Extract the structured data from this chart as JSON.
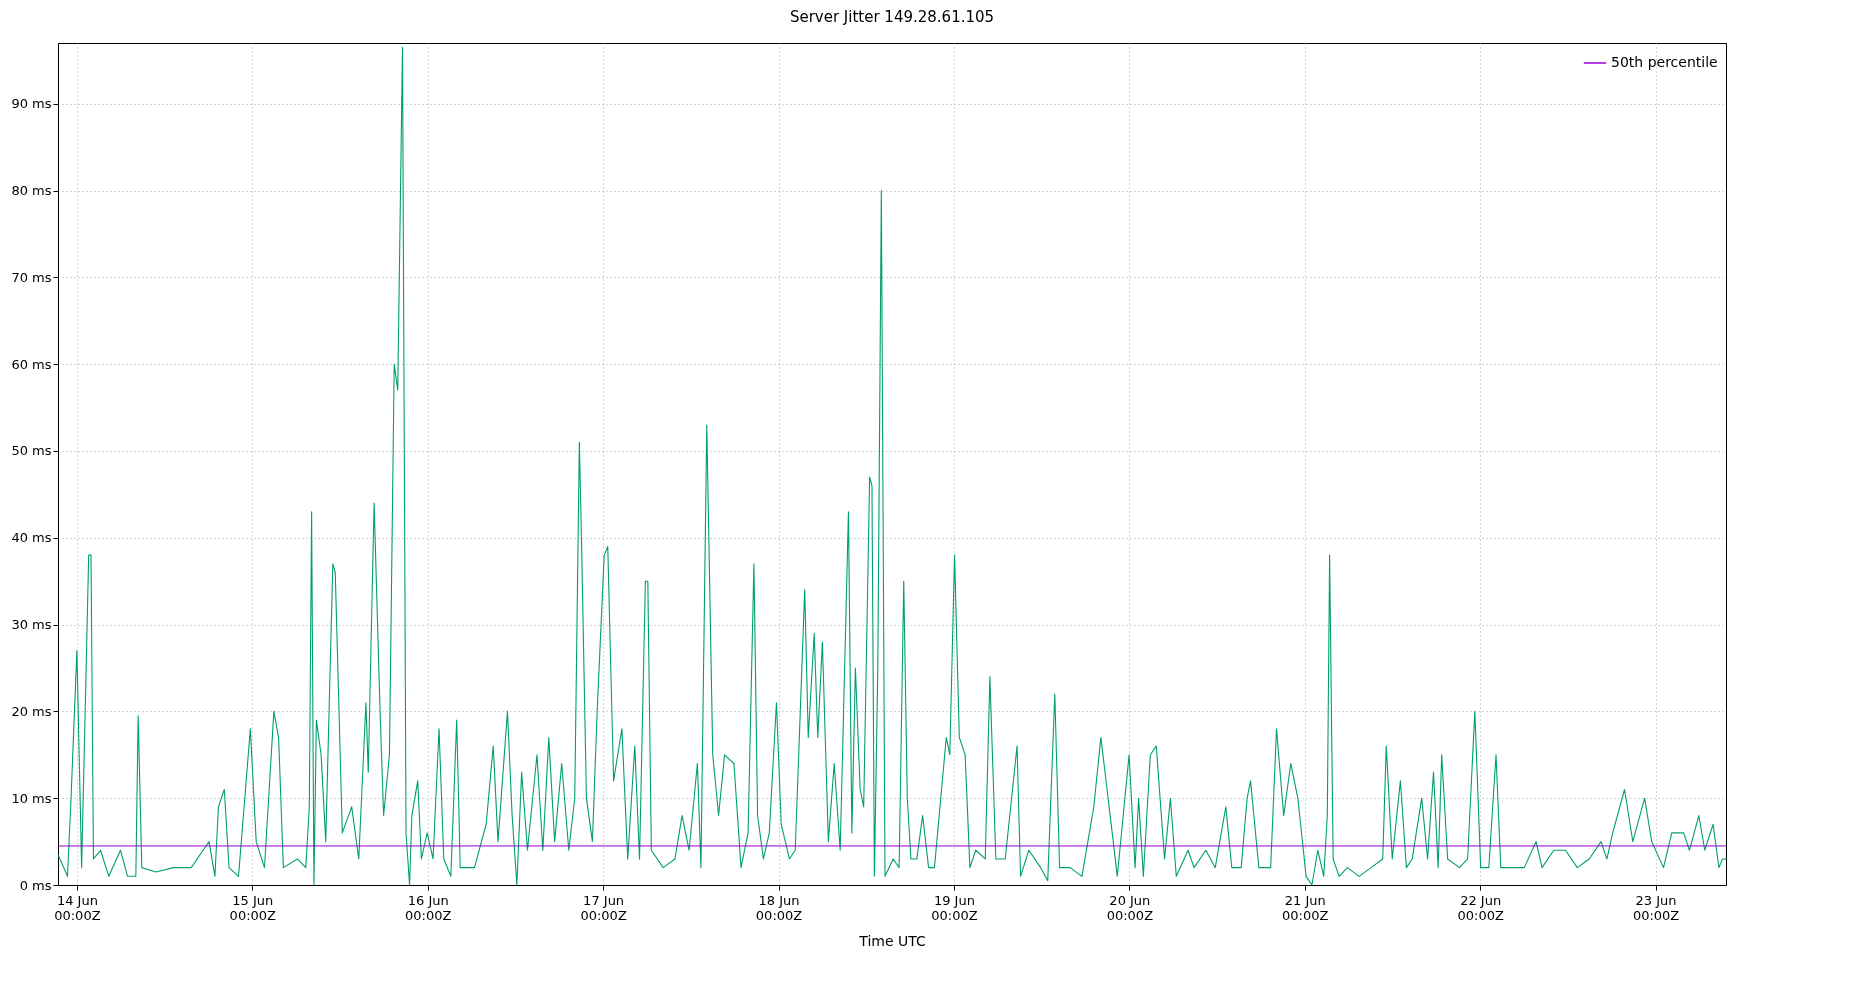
{
  "chart_data": {
    "type": "line",
    "title": "Server Jitter 149.28.61.105",
    "xlabel": "Time UTC",
    "xlim": [
      "--06-13T21:25",
      "--06-23T09:38"
    ],
    "xticks": [
      {
        "value": "--06-14T00:00",
        "label": "14 Jun\n00:00Z"
      },
      {
        "value": "--06-15T00:00",
        "label": "15 Jun\n00:00Z"
      },
      {
        "value": "--06-16T00:00",
        "label": "16 Jun\n00:00Z"
      },
      {
        "value": "--06-17T00:00",
        "label": "17 Jun\n00:00Z"
      },
      {
        "value": "--06-18T00:00",
        "label": "18 Jun\n00:00Z"
      },
      {
        "value": "--06-19T00:00",
        "label": "19 Jun\n00:00Z"
      },
      {
        "value": "--06-20T00:00",
        "label": "20 Jun\n00:00Z"
      },
      {
        "value": "--06-21T00:00",
        "label": "21 Jun\n00:00Z"
      },
      {
        "value": "--06-22T00:00",
        "label": "22 Jun\n00:00Z"
      },
      {
        "value": "--06-23T00:00",
        "label": "23 Jun\n00:00Z"
      }
    ],
    "ylim": [
      0,
      97
    ],
    "yticks": [
      {
        "value": 0,
        "label": "0 ms"
      },
      {
        "value": 10,
        "label": "10 ms"
      },
      {
        "value": 20,
        "label": "20 ms"
      },
      {
        "value": 30,
        "label": "30 ms"
      },
      {
        "value": 40,
        "label": "40 ms"
      },
      {
        "value": 50,
        "label": "50 ms"
      },
      {
        "value": 60,
        "label": "60 ms"
      },
      {
        "value": 70,
        "label": "70 ms"
      },
      {
        "value": 80,
        "label": "80 ms"
      },
      {
        "value": 90,
        "label": "90 ms"
      }
    ],
    "grid": true,
    "legend": "top right",
    "line_style": "solid",
    "marker": "none",
    "ref_lines": [
      {
        "axis": "y",
        "value": 4.5,
        "label": "50th percentile",
        "color": "#9400d3"
      }
    ],
    "series": [
      {
        "color": "#009e73",
        "x": [
          "--06-13T21:25",
          "--06-13T22:43",
          "--06-13T23:12",
          "--06-14T00:00",
          "--06-14T00:39",
          "--06-14T01:37",
          "--06-14T01:56",
          "--06-14T02:16",
          "--06-14T03:14",
          "--06-14T04:22",
          "--06-14T05:58",
          "--06-14T06:56",
          "--06-14T08:04",
          "--06-14T08:23",
          "--06-14T08:53",
          "--06-14T10:49",
          "--06-14T13:14",
          "--06-14T15:39",
          "--06-14T17:16",
          "--06-14T18:05",
          "--06-14T18:53",
          "--06-14T19:22",
          "--06-14T20:10",
          "--06-14T20:49",
          "--06-14T22:07",
          "--06-14T23:44",
          "--06-15T00:32",
          "--06-15T01:40",
          "--06-15T02:57",
          "--06-15T03:36",
          "--06-15T04:15",
          "--06-15T06:11",
          "--06-15T07:19",
          "--06-15T07:48",
          "--06-15T08:07",
          "--06-15T08:26",
          "--06-15T08:46",
          "--06-15T09:25",
          "--06-15T10:03",
          "--06-15T11:01",
          "--06-15T11:21",
          "--06-15T12:19",
          "--06-15T13:36",
          "--06-15T14:34",
          "--06-15T15:33",
          "--06-15T15:52",
          "--06-15T16:40",
          "--06-15T17:29",
          "--06-15T17:58",
          "--06-15T18:46",
          "--06-15T19:25",
          "--06-15T19:54",
          "--06-15T20:33",
          "--06-15T21:02",
          "--06-15T21:31",
          "--06-15T21:50",
          "--06-15T22:38",
          "--06-15T23:08",
          "--06-15T23:56",
          "--06-16T00:44",
          "--06-16T01:33",
          "--06-16T02:12",
          "--06-16T03:10",
          "--06-16T03:58",
          "--06-16T04:27",
          "--06-16T06:24",
          "--06-16T08:00",
          "--06-16T08:58",
          "--06-16T09:37",
          "--06-16T10:55",
          "--06-16T11:33",
          "--06-16T12:12",
          "--06-16T12:51",
          "--06-16T13:39",
          "--06-16T14:57",
          "--06-16T15:45",
          "--06-16T16:34",
          "--06-16T17:22",
          "--06-16T18:20",
          "--06-16T19:18",
          "--06-16T20:07",
          "--06-16T20:45",
          "--06-16T21:05",
          "--06-16T21:43",
          "--06-16T22:32",
          "--06-16T23:11",
          "--06-17T00:09",
          "--06-17T00:38",
          "--06-17T01:26",
          "--06-17T02:34",
          "--06-17T03:22",
          "--06-17T04:20",
          "--06-17T04:59",
          "--06-17T05:47",
          "--06-17T06:07",
          "--06-17T06:36",
          "--06-17T08:13",
          "--06-17T09:50",
          "--06-17T10:48",
          "--06-17T11:46",
          "--06-17T12:54",
          "--06-17T13:23",
          "--06-17T14:11",
          "--06-17T15:00",
          "--06-17T15:48",
          "--06-17T16:37",
          "--06-17T17:54",
          "--06-17T18:52",
          "--06-17T19:50",
          "--06-17T20:38",
          "--06-17T21:08",
          "--06-17T21:56",
          "--06-17T22:44",
          "--06-17T23:43",
          "--06-18T00:22",
          "--06-18T01:29",
          "--06-18T02:17",
          "--06-18T03:35",
          "--06-18T04:04",
          "--06-18T04:53",
          "--06-18T05:22",
          "--06-18T06:00",
          "--06-18T06:49",
          "--06-18T07:37",
          "--06-18T08:26",
          "--06-18T09:34",
          "--06-18T10:02",
          "--06-18T10:31",
          "--06-18T11:10",
          "--06-18T11:39",
          "--06-18T12:28",
          "--06-18T12:47",
          "--06-18T13:07",
          "--06-18T13:35",
          "--06-18T14:04",
          "--06-18T14:34",
          "--06-18T15:41",
          "--06-18T16:30",
          "--06-18T17:08",
          "--06-18T17:37",
          "--06-18T18:07",
          "--06-18T18:55",
          "--06-18T19:43",
          "--06-18T20:32",
          "--06-18T21:20",
          "--06-18T22:57",
          "--06-18T23:26",
          "--06-19T00:05",
          "--06-19T00:44",
          "--06-19T01:32",
          "--06-19T02:11",
          "--06-19T02:59",
          "--06-19T04:17",
          "--06-19T04:55",
          "--06-19T05:44",
          "--06-19T07:01",
          "--06-19T08:38",
          "--06-19T09:07",
          "--06-19T10:15",
          "--06-19T11:52",
          "--06-19T12:50",
          "--06-19T13:48",
          "--06-19T14:27",
          "--06-19T15:54",
          "--06-19T17:31",
          "--06-19T19:08",
          "--06-19T20:06",
          "--06-19T21:14",
          "--06-19T22:21",
          "--06-19T23:58",
          "--06-20T00:47",
          "--06-20T01:16",
          "--06-20T01:55",
          "--06-20T02:52",
          "--06-20T03:41",
          "--06-20T04:49",
          "--06-20T05:37",
          "--06-20T06:25",
          "--06-20T08:02",
          "--06-20T08:51",
          "--06-20T10:28",
          "--06-20T11:45",
          "--06-20T13:12",
          "--06-20T14:01",
          "--06-20T15:18",
          "--06-20T16:07",
          "--06-20T16:35",
          "--06-20T17:43",
          "--06-20T19:20",
          "--06-20T20:08",
          "--06-20T21:07",
          "--06-20T22:05",
          "--06-20T23:03",
          "--06-21T00:11",
          "--06-21T00:59",
          "--06-21T01:47",
          "--06-21T02:36",
          "--06-21T03:05",
          "--06-21T03:24",
          "--06-21T03:53",
          "--06-21T04:42",
          "--06-21T05:50",
          "--06-21T07:26",
          "--06-21T09:04",
          "--06-21T10:40",
          "--06-21T11:09",
          "--06-21T11:58",
          "--06-21T13:05",
          "--06-21T13:54",
          "--06-21T14:42",
          "--06-21T16:00",
          "--06-21T16:48",
          "--06-21T17:37",
          "--06-21T18:15",
          "--06-21T18:44",
          "--06-21T19:33",
          "--06-21T21:10",
          "--06-21T22:17",
          "--06-21T23:16",
          "--06-22T00:04",
          "--06-22T01:11",
          "--06-22T02:10",
          "--06-22T02:49",
          "--06-22T04:25",
          "--06-22T06:02",
          "--06-22T07:39",
          "--06-22T08:28",
          "--06-22T10:04",
          "--06-22T11:41",
          "--06-22T13:18",
          "--06-22T14:55",
          "--06-22T16:32",
          "--06-22T17:20",
          "--06-22T18:08",
          "--06-22T19:45",
          "--06-22T20:53",
          "--06-22T22:30",
          "--06-22T23:28",
          "--06-23T01:05",
          "--06-23T02:13",
          "--06-23T03:50",
          "--06-23T04:38",
          "--06-23T05:55",
          "--06-23T06:44",
          "--06-23T07:52",
          "--06-23T08:40",
          "--06-23T09:09",
          "--06-23T09:38"
        ],
        "values": [
          3.5,
          1,
          10,
          27,
          2,
          38,
          38,
          3,
          4,
          1,
          4,
          1,
          1,
          19.5,
          2,
          1.5,
          2,
          2,
          4,
          5,
          1,
          9,
          11,
          2,
          1,
          18,
          5,
          2,
          20,
          17,
          2,
          3,
          2,
          9,
          43,
          0,
          19,
          15,
          5,
          37,
          36,
          6,
          9,
          3,
          21,
          13,
          44,
          20,
          8,
          15,
          60,
          57,
          96.5,
          6,
          0,
          8,
          12,
          3,
          6,
          3,
          18,
          3,
          1,
          19,
          2,
          2,
          7,
          16,
          5,
          20,
          8,
          0,
          13,
          4,
          15,
          4,
          17,
          5,
          14,
          4,
          10,
          51,
          38,
          10,
          5,
          20,
          38,
          39,
          12,
          18,
          3,
          16,
          3,
          35,
          35,
          4,
          2,
          3,
          8,
          4,
          14,
          2,
          53,
          15,
          8,
          15,
          14,
          2,
          6,
          37,
          8,
          3,
          6,
          21,
          7,
          3,
          4,
          34,
          17,
          29,
          17,
          28,
          5,
          14,
          4,
          43,
          6,
          25,
          11,
          9,
          47,
          46,
          1,
          25,
          80,
          1,
          3,
          2,
          35,
          10,
          3,
          3,
          8,
          2,
          2,
          17,
          15,
          38,
          17,
          15,
          2,
          4,
          3,
          24,
          3,
          3,
          16,
          1,
          4,
          2,
          0.5,
          22,
          2,
          2,
          1,
          9,
          17,
          9,
          1,
          15,
          2,
          10,
          1,
          15,
          16,
          3,
          10,
          1,
          4,
          2,
          4,
          2,
          9,
          2,
          2,
          10,
          12,
          2,
          2,
          18,
          8,
          14,
          10,
          1,
          0,
          4,
          1,
          8,
          38,
          3,
          1,
          2,
          1,
          2,
          3,
          16,
          3,
          12,
          2,
          3,
          10,
          3,
          13,
          2,
          15,
          3,
          2,
          3,
          20,
          2,
          2,
          15,
          2,
          2,
          2,
          5,
          2,
          4,
          4,
          2,
          3,
          5,
          3,
          6,
          11,
          5,
          10,
          5,
          2,
          6,
          6,
          4,
          8,
          4,
          7,
          2,
          3,
          3
        ]
      }
    ]
  }
}
